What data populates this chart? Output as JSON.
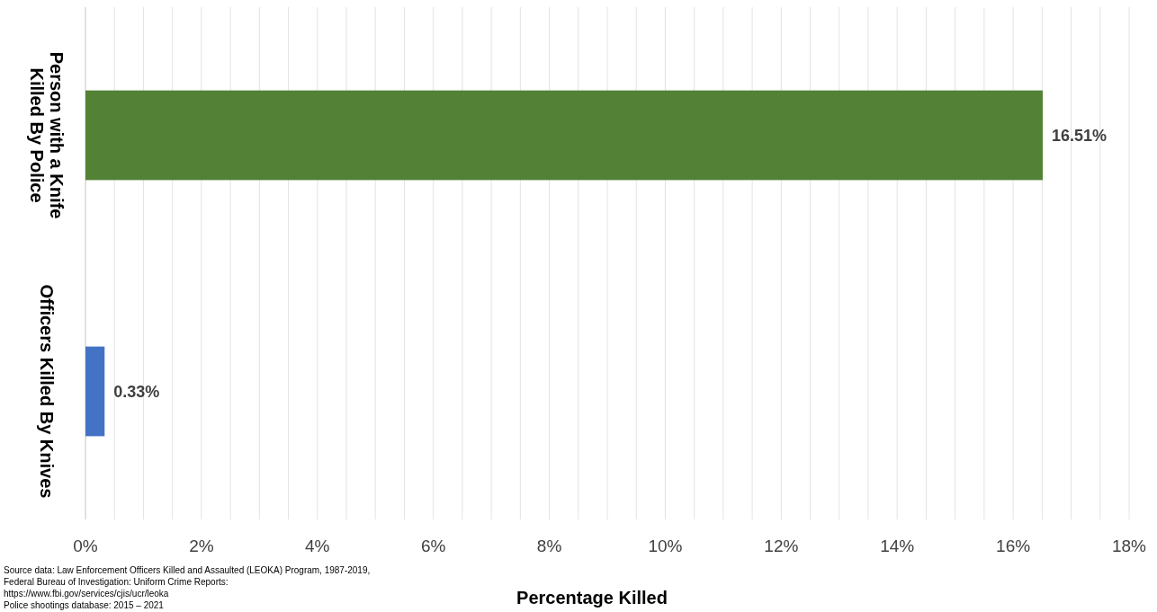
{
  "chart_data": {
    "type": "bar",
    "orientation": "horizontal",
    "xlabel": "Percentage Killed",
    "categories": [
      "Person with a Knife Killed By Police",
      "Officers Killed By Knives"
    ],
    "values": [
      16.51,
      0.33
    ],
    "colors": [
      "#538135",
      "#4472c4"
    ],
    "value_labels": [
      "16.51%",
      "0.33%"
    ],
    "xlim": [
      0,
      18
    ],
    "xticks": [
      {
        "value": 0,
        "label": "0%"
      },
      {
        "value": 0.5,
        "label": null
      },
      {
        "value": 1,
        "label": null
      },
      {
        "value": 1.5,
        "label": null
      },
      {
        "value": 2,
        "label": "2%"
      },
      {
        "value": 2.5,
        "label": null
      },
      {
        "value": 3,
        "label": null
      },
      {
        "value": 3.5,
        "label": null
      },
      {
        "value": 4,
        "label": "4%"
      },
      {
        "value": 4.5,
        "label": null
      },
      {
        "value": 5,
        "label": null
      },
      {
        "value": 5.5,
        "label": null
      },
      {
        "value": 6,
        "label": "6%"
      },
      {
        "value": 6.5,
        "label": null
      },
      {
        "value": 7,
        "label": null
      },
      {
        "value": 7.5,
        "label": null
      },
      {
        "value": 8,
        "label": "8%"
      },
      {
        "value": 8.5,
        "label": null
      },
      {
        "value": 9,
        "label": null
      },
      {
        "value": 9.5,
        "label": null
      },
      {
        "value": 10,
        "label": "10%"
      },
      {
        "value": 10.5,
        "label": null
      },
      {
        "value": 11,
        "label": null
      },
      {
        "value": 11.5,
        "label": null
      },
      {
        "value": 12,
        "label": "12%"
      },
      {
        "value": 12.5,
        "label": null
      },
      {
        "value": 13,
        "label": null
      },
      {
        "value": 13.5,
        "label": null
      },
      {
        "value": 14,
        "label": "14%"
      },
      {
        "value": 14.5,
        "label": null
      },
      {
        "value": 15,
        "label": null
      },
      {
        "value": 15.5,
        "label": null
      },
      {
        "value": 16,
        "label": "16%"
      },
      {
        "value": 16.5,
        "label": null
      },
      {
        "value": 17,
        "label": null
      },
      {
        "value": 17.5,
        "label": null
      },
      {
        "value": 18,
        "label": "18%"
      }
    ],
    "grid": "x",
    "annotations": [
      "Source data: Law Enforcement Officers Killed and Assaulted (LEOKA) Program, 1987-2019, Federal Bureau of Investigation: Uniform Crime Reports: https://www.fbi.gov/services/cjis/ucr/leoka",
      "Police shootings database: 2015 – 2021"
    ]
  }
}
